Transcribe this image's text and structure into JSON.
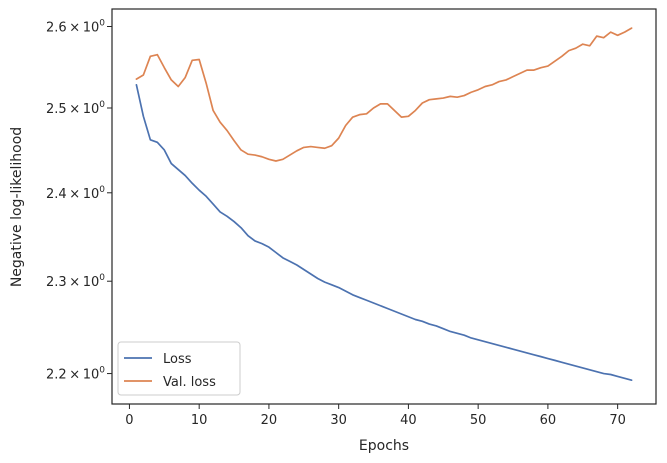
{
  "chart_data": {
    "type": "line",
    "xlabel": "Epochs",
    "ylabel": "Negative log-likelihood",
    "xlim": [
      -2.5,
      75.5
    ],
    "ylim": [
      2.168,
      2.622
    ],
    "yscale": "log",
    "x_ticks": [
      0,
      10,
      20,
      30,
      40,
      50,
      60,
      70
    ],
    "y_ticks": [
      {
        "value": 2.2,
        "base": "2.2",
        "times": "×",
        "pow": "10",
        "exp": "0"
      },
      {
        "value": 2.3,
        "base": "2.3",
        "times": "×",
        "pow": "10",
        "exp": "0"
      },
      {
        "value": 2.4,
        "base": "2.4",
        "times": "×",
        "pow": "10",
        "exp": "0"
      },
      {
        "value": 2.5,
        "base": "2.5",
        "times": "×",
        "pow": "10",
        "exp": "0"
      },
      {
        "value": 2.6,
        "base": "2.6",
        "times": "×",
        "pow": "10",
        "exp": "0"
      }
    ],
    "grid": false,
    "legend_position": "lower-left",
    "x": [
      1,
      2,
      3,
      4,
      5,
      6,
      7,
      8,
      9,
      10,
      11,
      12,
      13,
      14,
      15,
      16,
      17,
      18,
      19,
      20,
      21,
      22,
      23,
      24,
      25,
      26,
      27,
      28,
      29,
      30,
      31,
      32,
      33,
      34,
      35,
      36,
      37,
      38,
      39,
      40,
      41,
      42,
      43,
      44,
      45,
      46,
      47,
      48,
      49,
      50,
      51,
      52,
      53,
      54,
      55,
      56,
      57,
      58,
      59,
      60,
      61,
      62,
      63,
      64,
      65,
      66,
      67,
      68,
      69,
      70,
      71,
      72
    ],
    "series": [
      {
        "name": "Loss",
        "color": "#4c72b0",
        "values": [
          2.528,
          2.49,
          2.462,
          2.459,
          2.45,
          2.434,
          2.427,
          2.42,
          2.411,
          2.403,
          2.396,
          2.387,
          2.378,
          2.373,
          2.367,
          2.36,
          2.351,
          2.345,
          2.342,
          2.338,
          2.332,
          2.326,
          2.322,
          2.318,
          2.313,
          2.308,
          2.303,
          2.299,
          2.296,
          2.293,
          2.289,
          2.285,
          2.282,
          2.279,
          2.276,
          2.273,
          2.27,
          2.267,
          2.264,
          2.261,
          2.258,
          2.256,
          2.253,
          2.251,
          2.248,
          2.245,
          2.243,
          2.241,
          2.238,
          2.236,
          2.234,
          2.232,
          2.23,
          2.228,
          2.226,
          2.224,
          2.222,
          2.22,
          2.218,
          2.216,
          2.214,
          2.212,
          2.21,
          2.208,
          2.206,
          2.204,
          2.202,
          2.2,
          2.199,
          2.197,
          2.195,
          2.193
        ]
      },
      {
        "name": "Val. loss",
        "color": "#dd8452",
        "values": [
          2.535,
          2.54,
          2.563,
          2.565,
          2.549,
          2.534,
          2.526,
          2.537,
          2.558,
          2.559,
          2.53,
          2.497,
          2.483,
          2.473,
          2.461,
          2.45,
          2.445,
          2.444,
          2.442,
          2.439,
          2.437,
          2.439,
          2.444,
          2.449,
          2.453,
          2.454,
          2.453,
          2.452,
          2.455,
          2.464,
          2.479,
          2.489,
          2.492,
          2.493,
          2.5,
          2.505,
          2.505,
          2.497,
          2.489,
          2.49,
          2.497,
          2.506,
          2.51,
          2.511,
          2.512,
          2.514,
          2.513,
          2.515,
          2.519,
          2.522,
          2.526,
          2.528,
          2.532,
          2.534,
          2.538,
          2.542,
          2.546,
          2.546,
          2.549,
          2.551,
          2.557,
          2.563,
          2.57,
          2.573,
          2.578,
          2.576,
          2.588,
          2.586,
          2.593,
          2.589,
          2.593,
          2.598
        ]
      }
    ]
  }
}
